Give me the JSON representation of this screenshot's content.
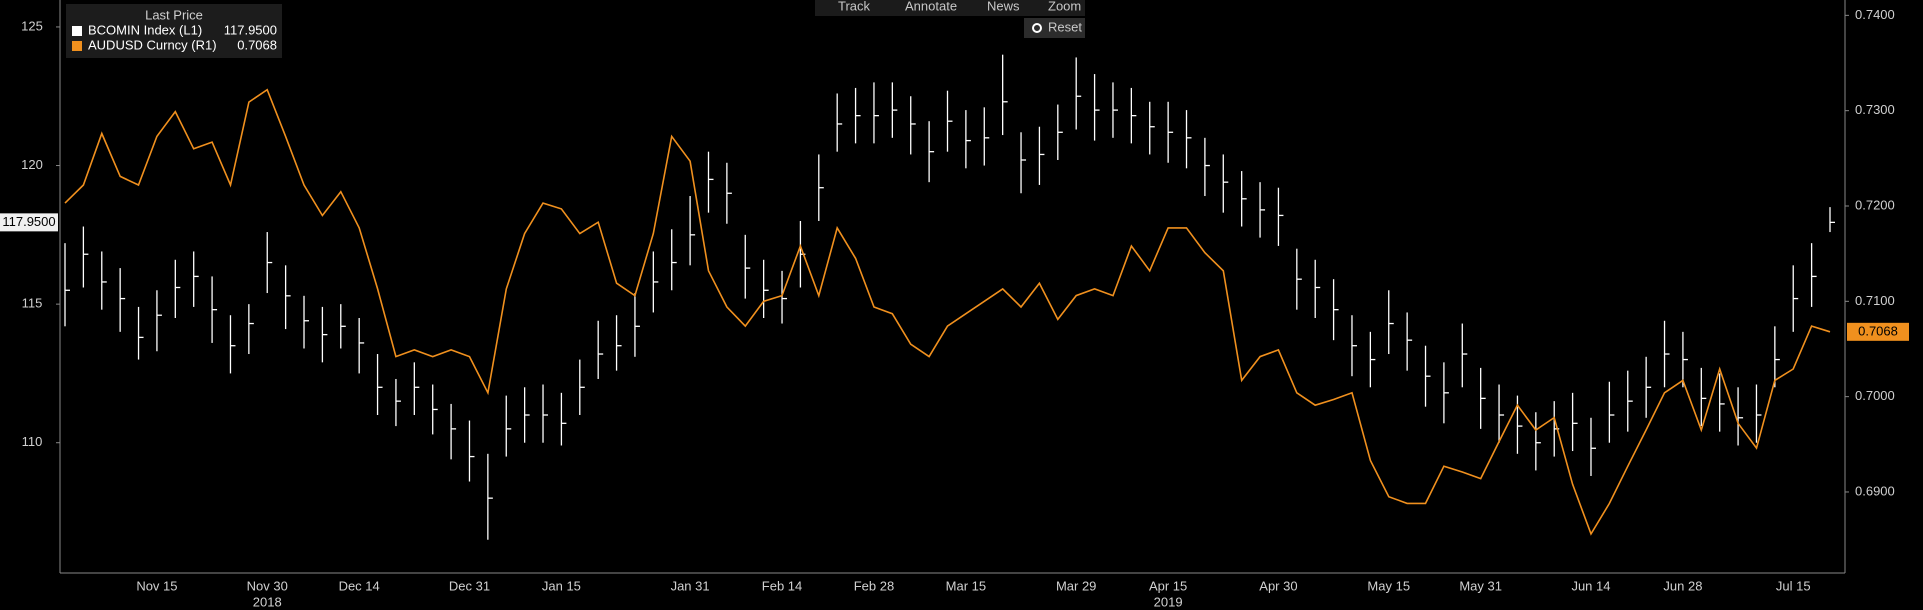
{
  "chart_data": {
    "type": "combo",
    "legend_title": "Last Price",
    "toolbar": [
      "Track",
      "Annotate",
      "News",
      "Zoom"
    ],
    "reset": "Reset",
    "categories": [
      null,
      null,
      null,
      null,
      null,
      "Nov 15",
      null,
      null,
      null,
      null,
      null,
      "Nov 30",
      null,
      null,
      null,
      null,
      "Dec 14",
      null,
      null,
      null,
      null,
      null,
      "Dec 31",
      null,
      null,
      null,
      null,
      "Jan 15",
      null,
      null,
      null,
      null,
      null,
      null,
      "Jan 31",
      null,
      null,
      null,
      null,
      "Feb 14",
      null,
      null,
      null,
      null,
      "Feb 28",
      null,
      null,
      null,
      null,
      "Mar 15",
      null,
      null,
      null,
      null,
      null,
      "Mar 29",
      null,
      null,
      null,
      null,
      "Apr 15",
      null,
      null,
      null,
      null,
      null,
      "Apr 30",
      null,
      null,
      null,
      null,
      null,
      "May 15",
      null,
      null,
      null,
      null,
      "May 31",
      null,
      null,
      null,
      null,
      null,
      "Jun 14",
      null,
      null,
      null,
      null,
      "Jun 28",
      null,
      null,
      null,
      null,
      null,
      "Jul 15",
      null,
      null
    ],
    "category_years": [
      null,
      null,
      null,
      null,
      null,
      null,
      null,
      null,
      null,
      null,
      null,
      "2018",
      null,
      null,
      null,
      null,
      null,
      null,
      null,
      null,
      null,
      null,
      null,
      null,
      null,
      null,
      null,
      null,
      null,
      null,
      null,
      null,
      null,
      null,
      null,
      null,
      null,
      null,
      null,
      null,
      null,
      null,
      null,
      null,
      null,
      null,
      null,
      null,
      null,
      null,
      null,
      null,
      null,
      null,
      null,
      null,
      null,
      null,
      null,
      null,
      "2019",
      null,
      null,
      null,
      null,
      null,
      null,
      null,
      null,
      null,
      null,
      null,
      null,
      null,
      null,
      null,
      null,
      null,
      null,
      null,
      null,
      null,
      null,
      null,
      null,
      null,
      null,
      null,
      null,
      null,
      null,
      null,
      null,
      null,
      null,
      null,
      null
    ],
    "ylim": [
      105.3,
      125.9
    ],
    "yticks": [
      110,
      115,
      120,
      125
    ],
    "y2lim": [
      0.6815,
      0.7414
    ],
    "y2ticks": [
      {
        "value": 0.69,
        "label": "0.6900"
      },
      {
        "value": 0.7,
        "label": "0.7000"
      },
      {
        "value": 0.71,
        "label": "0.7100"
      },
      {
        "value": 0.72,
        "label": "0.7200"
      },
      {
        "value": 0.73,
        "label": "0.7300"
      },
      {
        "value": 0.74,
        "label": "0.7400"
      }
    ],
    "series": [
      {
        "name": "BCOMIN Index  (L1)",
        "type": "hlc",
        "color": "#ffffff",
        "last_label": "117.9500",
        "values": [
          115.5,
          116.8,
          115.8,
          115.2,
          113.8,
          114.6,
          115.6,
          116,
          114.8,
          113.5,
          114.3,
          116.5,
          115.3,
          114.4,
          113.9,
          114.2,
          113.6,
          112.0,
          111.5,
          112.0,
          111.2,
          110.5,
          109.5,
          108.0,
          110.5,
          111.0,
          111.0,
          110.7,
          112.0,
          113.2,
          113.5,
          114.2,
          115.8,
          116.5,
          117.5,
          119.5,
          119.0,
          116.3,
          115.5,
          115.2,
          116.8,
          119.2,
          121.5,
          121.8,
          121.8,
          122.0,
          121.5,
          120.5,
          121.6,
          120.9,
          121.0,
          122.3,
          120.2,
          120.4,
          121.2,
          122.5,
          122.0,
          122.0,
          121.8,
          121.4,
          121.2,
          121.0,
          120.0,
          119.4,
          118.8,
          118.4,
          118.2,
          115.9,
          115.6,
          114.8,
          113.5,
          113.0,
          114.3,
          113.7,
          112.4,
          111.8,
          113.2,
          111.6,
          111.0,
          110.6,
          110.0,
          110.5,
          110.7,
          109.8,
          111.0,
          111.5,
          112.0,
          113.2,
          113.0,
          111.6,
          111.4,
          110.9,
          111.0,
          113.0,
          115.2,
          116.0,
          117.95
        ],
        "high": [
          117.2,
          117.8,
          116.9,
          116.3,
          114.9,
          115.5,
          116.6,
          116.9,
          116.0,
          114.6,
          115.0,
          117.6,
          116.4,
          115.3,
          114.9,
          115.0,
          114.5,
          113.2,
          112.3,
          112.9,
          112.1,
          111.4,
          110.8,
          109.6,
          111.7,
          112.0,
          112.1,
          111.8,
          113.0,
          114.4,
          114.6,
          115.4,
          116.9,
          117.7,
          118.9,
          120.5,
          120.1,
          117.5,
          116.6,
          116.2,
          118.0,
          120.4,
          122.6,
          122.8,
          123.0,
          123.0,
          122.5,
          121.6,
          122.7,
          122.0,
          122.1,
          124.0,
          121.2,
          121.4,
          122.2,
          123.9,
          123.3,
          123.0,
          122.8,
          122.3,
          122.3,
          122.0,
          121.0,
          120.4,
          119.8,
          119.4,
          119.2,
          117.0,
          116.6,
          115.9,
          114.6,
          114.0,
          115.5,
          114.7,
          113.5,
          112.9,
          114.3,
          112.7,
          112.1,
          111.7,
          111.1,
          111.5,
          111.8,
          110.9,
          112.2,
          112.6,
          113.1,
          114.4,
          114.0,
          112.7,
          112.5,
          112.0,
          112.1,
          114.2,
          116.4,
          117.2,
          118.5
        ],
        "low": [
          114.2,
          115.6,
          114.8,
          114.0,
          113.0,
          113.3,
          114.5,
          114.9,
          113.6,
          112.5,
          113.2,
          115.4,
          114.1,
          113.4,
          112.9,
          113.4,
          112.5,
          111.0,
          110.6,
          111.0,
          110.3,
          109.4,
          108.6,
          106.5,
          109.5,
          110.0,
          110.0,
          109.9,
          111.0,
          112.3,
          112.6,
          113.1,
          114.7,
          115.5,
          116.4,
          118.3,
          117.9,
          115.2,
          114.5,
          114.3,
          115.6,
          118.0,
          120.5,
          120.8,
          120.8,
          121.0,
          120.4,
          119.4,
          120.5,
          119.9,
          120.0,
          121.1,
          119.0,
          119.3,
          120.2,
          121.3,
          120.9,
          121.0,
          120.8,
          120.4,
          120.1,
          119.9,
          118.9,
          118.3,
          117.8,
          117.4,
          117.1,
          114.8,
          114.5,
          113.7,
          112.4,
          112.0,
          113.2,
          112.6,
          111.3,
          110.7,
          112.0,
          110.5,
          110.0,
          109.6,
          109.0,
          109.5,
          109.7,
          108.8,
          110.0,
          110.4,
          110.9,
          112.0,
          112.0,
          110.6,
          110.4,
          109.9,
          110.0,
          112.0,
          114.0,
          114.9,
          117.6
        ]
      },
      {
        "name": "AUDUSD Curncy  (R1)",
        "type": "line",
        "axis": "y2",
        "color": "#f0901e",
        "last_label": "0.7068",
        "values": [
          0.7203,
          0.7222,
          0.7276,
          0.7231,
          0.7222,
          0.7273,
          0.7299,
          0.726,
          0.7267,
          0.7222,
          0.7309,
          0.7322,
          0.7273,
          0.7222,
          0.719,
          0.7215,
          0.7177,
          0.7113,
          0.7042,
          0.7049,
          0.7042,
          0.7049,
          0.7042,
          0.7004,
          0.7113,
          0.7171,
          0.7203,
          0.7197,
          0.7171,
          0.7183,
          0.7119,
          0.7106,
          0.7171,
          0.7273,
          0.7247,
          0.7132,
          0.7094,
          0.7074,
          0.71,
          0.7106,
          0.7158,
          0.7106,
          0.7177,
          0.7145,
          0.7094,
          0.7087,
          0.7055,
          0.7042,
          0.7074,
          0.7087,
          0.71,
          0.7113,
          0.7094,
          0.7119,
          0.7081,
          0.7106,
          0.7113,
          0.7106,
          0.7158,
          0.7132,
          0.7177,
          0.7177,
          0.7151,
          0.7132,
          0.7017,
          0.7042,
          0.7049,
          0.7004,
          0.6991,
          0.6997,
          0.7004,
          0.6933,
          0.6895,
          0.6888,
          0.6888,
          0.6927,
          0.6921,
          0.6914,
          0.6953,
          0.6991,
          0.6965,
          0.6978,
          0.6908,
          0.6856,
          0.6888,
          0.6927,
          0.6965,
          0.7004,
          0.7017,
          0.6965,
          0.7029,
          0.6972,
          0.6946,
          0.7017,
          0.7029,
          0.7074,
          0.7068
        ]
      }
    ]
  }
}
